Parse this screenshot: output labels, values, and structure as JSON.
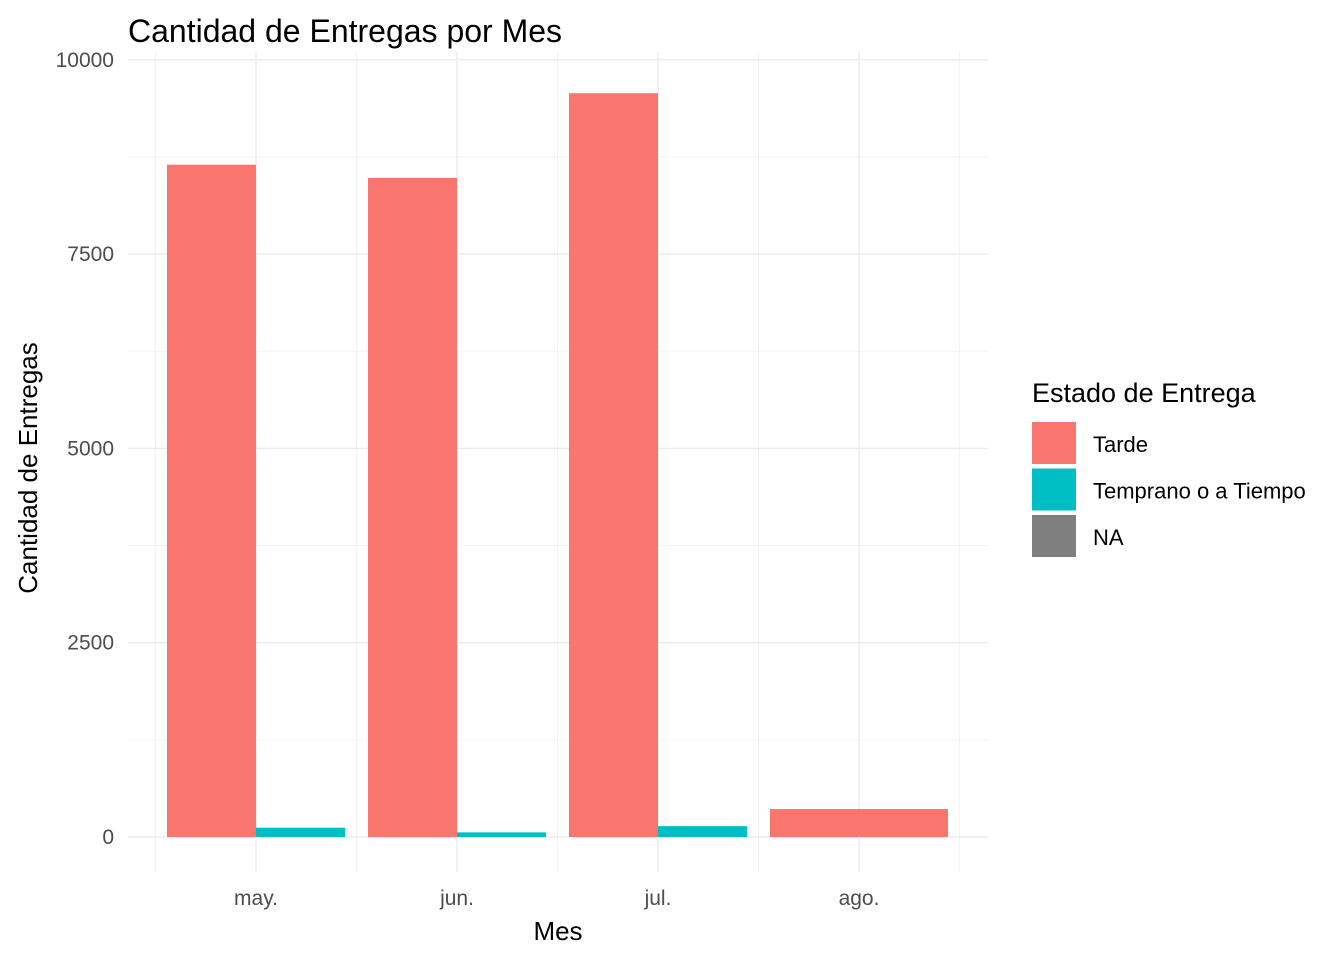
{
  "chart_data": {
    "type": "bar",
    "title": "Cantidad de Entregas por Mes",
    "xlabel": "Mes",
    "ylabel": "Cantidad de Entregas",
    "categories": [
      "may.",
      "jun.",
      "jul.",
      "ago."
    ],
    "y_ticks": [
      0,
      2500,
      5000,
      7500,
      10000
    ],
    "y_tick_labels": [
      "0",
      "2500",
      "5000",
      "7500",
      "10000"
    ],
    "ylim": [
      -450,
      10100
    ],
    "grid": true,
    "legend": {
      "title": "Estado de Entrega",
      "position": "right",
      "entries": [
        {
          "label": "Tarde",
          "color": "#F8766D"
        },
        {
          "label": "Temprano o a Tiempo",
          "color": "#00BFC4"
        },
        {
          "label": "NA",
          "color": "#7F7F7F"
        }
      ]
    },
    "series": [
      {
        "name": "Tarde",
        "color": "#F8766D",
        "values": [
          8650,
          8480,
          9570,
          360
        ]
      },
      {
        "name": "Temprano o a Tiempo",
        "color": "#00BFC4",
        "values": [
          120,
          60,
          140,
          null
        ]
      },
      {
        "name": "NA",
        "color": "#7F7F7F",
        "values": [
          null,
          null,
          null,
          null
        ]
      }
    ]
  }
}
